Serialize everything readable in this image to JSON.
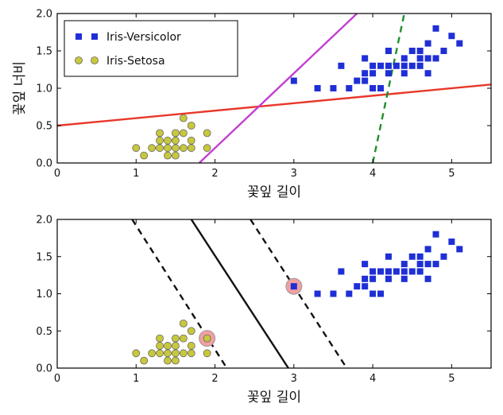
{
  "chart_data": [
    {
      "type": "scatter",
      "xlabel": "꽃잎 길이",
      "ylabel": "꽃잎 너비",
      "xlim": [
        0,
        5.5
      ],
      "ylim": [
        0,
        2.0
      ],
      "xticks": [
        "0",
        "1",
        "2",
        "3",
        "4",
        "5"
      ],
      "yticks": [
        "0.0",
        "0.5",
        "1.0",
        "1.5",
        "2.0"
      ],
      "grid": false,
      "legend": "top-left",
      "series": [
        {
          "name": "Iris-Versicolor",
          "marker": "square",
          "color": "#1f2fd6",
          "points": [
            [
              3.0,
              1.1
            ],
            [
              3.3,
              1.0
            ],
            [
              3.5,
              1.0
            ],
            [
              3.6,
              1.3
            ],
            [
              3.7,
              1.0
            ],
            [
              3.8,
              1.1
            ],
            [
              3.9,
              1.1
            ],
            [
              3.9,
              1.2
            ],
            [
              3.9,
              1.4
            ],
            [
              4.0,
              1.0
            ],
            [
              4.0,
              1.2
            ],
            [
              4.0,
              1.3
            ],
            [
              4.1,
              1.0
            ],
            [
              4.1,
              1.3
            ],
            [
              4.2,
              1.2
            ],
            [
              4.2,
              1.3
            ],
            [
              4.2,
              1.5
            ],
            [
              4.3,
              1.3
            ],
            [
              4.4,
              1.2
            ],
            [
              4.4,
              1.3
            ],
            [
              4.4,
              1.4
            ],
            [
              4.5,
              1.3
            ],
            [
              4.5,
              1.5
            ],
            [
              4.6,
              1.3
            ],
            [
              4.6,
              1.4
            ],
            [
              4.6,
              1.5
            ],
            [
              4.7,
              1.2
            ],
            [
              4.7,
              1.4
            ],
            [
              4.7,
              1.6
            ],
            [
              4.8,
              1.4
            ],
            [
              4.8,
              1.8
            ],
            [
              4.9,
              1.5
            ],
            [
              5.0,
              1.7
            ],
            [
              5.1,
              1.6
            ]
          ]
        },
        {
          "name": "Iris-Setosa",
          "marker": "circle",
          "color": "#c8c83c",
          "points": [
            [
              1.0,
              0.2
            ],
            [
              1.1,
              0.1
            ],
            [
              1.2,
              0.2
            ],
            [
              1.3,
              0.2
            ],
            [
              1.3,
              0.3
            ],
            [
              1.3,
              0.4
            ],
            [
              1.4,
              0.1
            ],
            [
              1.4,
              0.2
            ],
            [
              1.4,
              0.3
            ],
            [
              1.5,
              0.1
            ],
            [
              1.5,
              0.2
            ],
            [
              1.5,
              0.3
            ],
            [
              1.5,
              0.4
            ],
            [
              1.6,
              0.2
            ],
            [
              1.6,
              0.4
            ],
            [
              1.6,
              0.6
            ],
            [
              1.7,
              0.2
            ],
            [
              1.7,
              0.3
            ],
            [
              1.7,
              0.5
            ],
            [
              1.9,
              0.2
            ],
            [
              1.9,
              0.4
            ]
          ]
        }
      ],
      "lines": [
        {
          "color": "#e8372a",
          "style": "solid",
          "points": [
            [
              0,
              0.5
            ],
            [
              5.5,
              1.05
            ]
          ]
        },
        {
          "color": "#c23fd0",
          "style": "solid",
          "points": [
            [
              1.8,
              0
            ],
            [
              3.8,
              2.0
            ]
          ]
        },
        {
          "color": "#1f8f2a",
          "style": "dashed",
          "points": [
            [
              4.0,
              0
            ],
            [
              4.4,
              2.0
            ]
          ]
        }
      ]
    },
    {
      "type": "scatter",
      "xlabel": "꽃잎 길이",
      "ylabel": "",
      "xlim": [
        0,
        5.5
      ],
      "ylim": [
        0,
        2.0
      ],
      "xticks": [
        "0",
        "1",
        "2",
        "3",
        "4",
        "5"
      ],
      "yticks": [
        "0.0",
        "0.5",
        "1.0",
        "1.5",
        "2.0"
      ],
      "grid": false,
      "series": [
        {
          "name": "",
          "marker": "square",
          "color": "#1f2fd6",
          "points": [
            [
              3.0,
              1.1
            ],
            [
              3.3,
              1.0
            ],
            [
              3.5,
              1.0
            ],
            [
              3.6,
              1.3
            ],
            [
              3.7,
              1.0
            ],
            [
              3.8,
              1.1
            ],
            [
              3.9,
              1.1
            ],
            [
              3.9,
              1.2
            ],
            [
              3.9,
              1.4
            ],
            [
              4.0,
              1.0
            ],
            [
              4.0,
              1.2
            ],
            [
              4.0,
              1.3
            ],
            [
              4.1,
              1.0
            ],
            [
              4.1,
              1.3
            ],
            [
              4.2,
              1.2
            ],
            [
              4.2,
              1.3
            ],
            [
              4.2,
              1.5
            ],
            [
              4.3,
              1.3
            ],
            [
              4.4,
              1.2
            ],
            [
              4.4,
              1.3
            ],
            [
              4.4,
              1.4
            ],
            [
              4.5,
              1.3
            ],
            [
              4.5,
              1.5
            ],
            [
              4.6,
              1.3
            ],
            [
              4.6,
              1.4
            ],
            [
              4.6,
              1.5
            ],
            [
              4.7,
              1.2
            ],
            [
              4.7,
              1.4
            ],
            [
              4.7,
              1.6
            ],
            [
              4.8,
              1.4
            ],
            [
              4.8,
              1.8
            ],
            [
              4.9,
              1.5
            ],
            [
              5.0,
              1.7
            ],
            [
              5.1,
              1.6
            ]
          ]
        },
        {
          "name": "",
          "marker": "circle",
          "color": "#c8c83c",
          "points": [
            [
              1.0,
              0.2
            ],
            [
              1.1,
              0.1
            ],
            [
              1.2,
              0.2
            ],
            [
              1.3,
              0.2
            ],
            [
              1.3,
              0.3
            ],
            [
              1.3,
              0.4
            ],
            [
              1.4,
              0.1
            ],
            [
              1.4,
              0.2
            ],
            [
              1.4,
              0.3
            ],
            [
              1.5,
              0.1
            ],
            [
              1.5,
              0.2
            ],
            [
              1.5,
              0.3
            ],
            [
              1.5,
              0.4
            ],
            [
              1.6,
              0.2
            ],
            [
              1.6,
              0.4
            ],
            [
              1.6,
              0.6
            ],
            [
              1.7,
              0.2
            ],
            [
              1.7,
              0.3
            ],
            [
              1.7,
              0.5
            ],
            [
              1.9,
              0.2
            ],
            [
              1.9,
              0.4
            ]
          ]
        }
      ],
      "support_vectors": {
        "color": "#f0a0a0",
        "points": [
          [
            1.9,
            0.4
          ],
          [
            3.0,
            1.1
          ]
        ]
      },
      "lines": [
        {
          "color": "#111111",
          "style": "solid",
          "points": [
            [
              1.7,
              2.0
            ],
            [
              2.93,
              0
            ]
          ]
        },
        {
          "color": "#111111",
          "style": "dashed",
          "points": [
            [
              0.95,
              2.0
            ],
            [
              2.15,
              0
            ]
          ]
        },
        {
          "color": "#111111",
          "style": "dashed",
          "points": [
            [
              2.45,
              2.0
            ],
            [
              3.67,
              0
            ]
          ]
        }
      ]
    }
  ]
}
